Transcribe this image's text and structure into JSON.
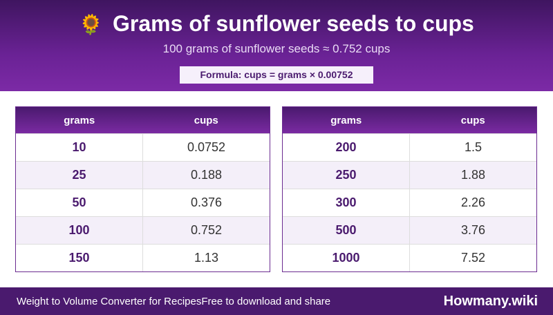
{
  "header": {
    "icon": "🌻",
    "title": "Grams of sunflower seeds to cups",
    "subtitle": "100 grams of sunflower seeds ≈ 0.752 cups",
    "formula": "Formula: cups = grams × 0.00752"
  },
  "tables": [
    {
      "columns": [
        "grams",
        "cups"
      ],
      "rows": [
        [
          "10",
          "0.0752"
        ],
        [
          "25",
          "0.188"
        ],
        [
          "50",
          "0.376"
        ],
        [
          "100",
          "0.752"
        ],
        [
          "150",
          "1.13"
        ]
      ]
    },
    {
      "columns": [
        "grams",
        "cups"
      ],
      "rows": [
        [
          "200",
          "1.5"
        ],
        [
          "250",
          "1.88"
        ],
        [
          "300",
          "2.26"
        ],
        [
          "500",
          "3.76"
        ],
        [
          "1000",
          "7.52"
        ]
      ]
    }
  ],
  "footer": {
    "name": "Weight to Volume Converter for Recipes",
    "note": "Free to download and share",
    "brand": "Howmany.wiki"
  }
}
